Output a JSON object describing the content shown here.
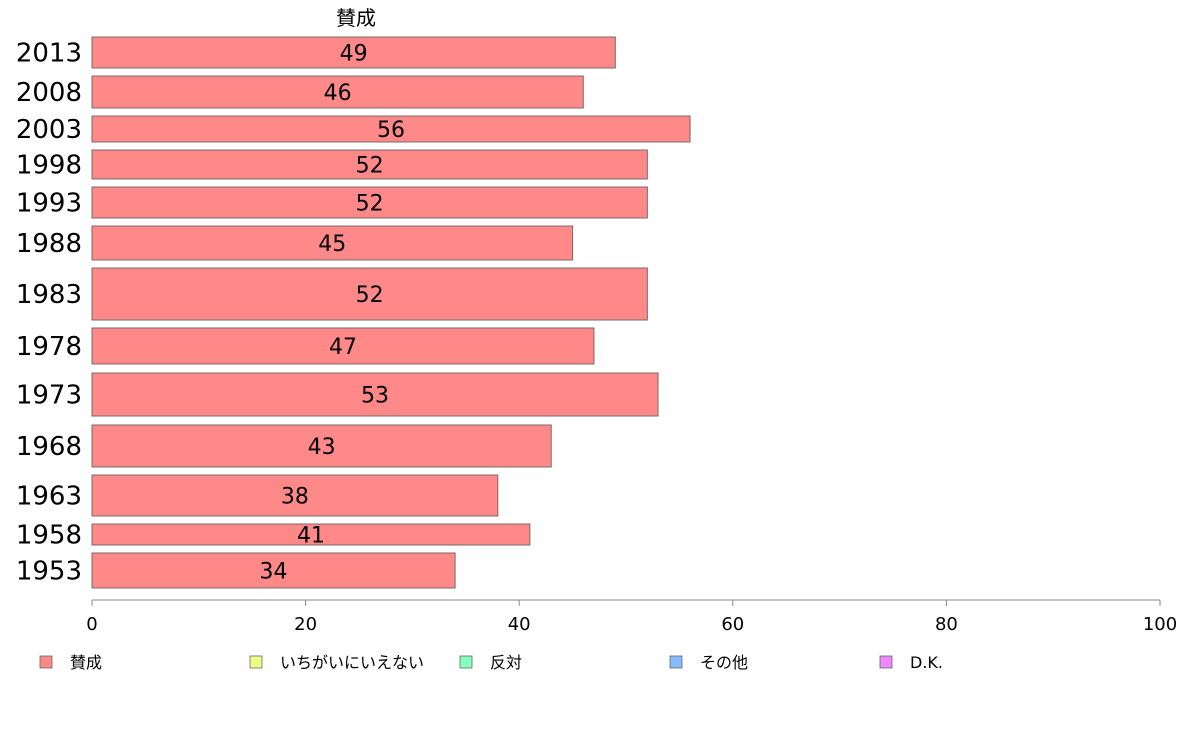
{
  "chart_data": {
    "type": "bar",
    "orientation": "horizontal",
    "column_title": "賛成",
    "categories": [
      "2013",
      "2008",
      "2003",
      "1998",
      "1993",
      "1988",
      "1983",
      "1978",
      "1973",
      "1968",
      "1963",
      "1958",
      "1953"
    ],
    "series": [
      {
        "name": "賛成",
        "color": "#ff8888",
        "values": [
          49,
          46,
          56,
          52,
          52,
          45,
          52,
          47,
          53,
          43,
          38,
          41,
          34
        ]
      }
    ],
    "xlim": [
      0,
      100
    ],
    "xticks": [
      0,
      20,
      40,
      60,
      80,
      100
    ],
    "legend": {
      "placement": "bottom",
      "items": [
        {
          "label": "賛成",
          "color": "#ff8888"
        },
        {
          "label": "いちがいにいえない",
          "color": "#eeff88"
        },
        {
          "label": "反対",
          "color": "#88ffbb"
        },
        {
          "label": "その他",
          "color": "#88bbff"
        },
        {
          "label": "D.K.",
          "color": "#ee88ff"
        }
      ]
    },
    "grid": false
  }
}
